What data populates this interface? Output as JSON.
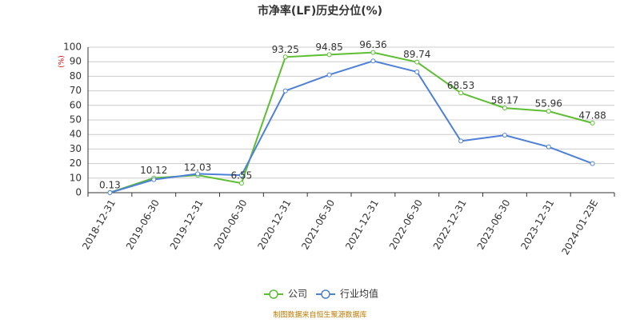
{
  "chart_data": {
    "type": "line",
    "title": "市净率(LF)历史分位(%)",
    "y_label": "(%)",
    "source": "制图数据来自恒生聚源数据库",
    "categories": [
      "2018-12-31",
      "2019-06-30",
      "2019-12-31",
      "2020-06-30",
      "2020-12-31",
      "2021-06-30",
      "2021-12-31",
      "2022-06-30",
      "2022-12-31",
      "2023-06-30",
      "2023-12-31",
      "2024-01-23E"
    ],
    "series": [
      {
        "name": "公司",
        "color": "#5cbf32",
        "values": [
          0.13,
          10.12,
          12.03,
          6.55,
          93.25,
          94.85,
          96.36,
          89.74,
          68.53,
          58.17,
          55.96,
          47.88
        ]
      },
      {
        "name": "行业均值",
        "color": "#4d80d6",
        "values": [
          0,
          9,
          13,
          12,
          70,
          81,
          90.5,
          83,
          35.5,
          39.5,
          31.5,
          20
        ]
      }
    ],
    "ylim": [
      0,
      100
    ],
    "yticks": [
      0,
      10,
      20,
      30,
      40,
      50,
      60,
      70,
      80,
      90,
      100
    ],
    "grid": true,
    "legend": "bottom"
  }
}
